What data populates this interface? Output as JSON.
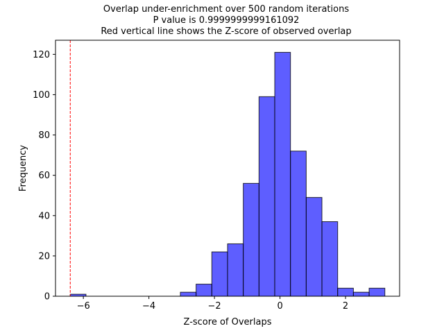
{
  "chart_data": {
    "type": "bar",
    "title_lines": [
      "Overlap under-enrichment over 500 random iterations",
      "P value is 0.9999999999161092",
      "Red vertical line shows the Z-score of observed overlap"
    ],
    "xlabel": "Z-score of Overlaps",
    "ylabel": "Frequency",
    "xlim": [
      -6.85,
      3.65
    ],
    "ylim": [
      0,
      127
    ],
    "xticks": [
      -6,
      -4,
      -2,
      0,
      2
    ],
    "xtick_labels": [
      "−6",
      "−4",
      "−2",
      "0",
      "2"
    ],
    "yticks": [
      0,
      20,
      40,
      60,
      80,
      100,
      120
    ],
    "ytick_labels": [
      "0",
      "20",
      "40",
      "60",
      "80",
      "100",
      "120"
    ],
    "bins": [
      {
        "x0": -6.4,
        "x1": -5.92,
        "count": 1
      },
      {
        "x0": -5.92,
        "x1": -5.44,
        "count": 0
      },
      {
        "x0": -5.44,
        "x1": -4.96,
        "count": 0
      },
      {
        "x0": -4.96,
        "x1": -4.48,
        "count": 0
      },
      {
        "x0": -4.48,
        "x1": -4.0,
        "count": 0
      },
      {
        "x0": -4.0,
        "x1": -3.52,
        "count": 0
      },
      {
        "x0": -3.52,
        "x1": -3.04,
        "count": 0
      },
      {
        "x0": -3.04,
        "x1": -2.56,
        "count": 2
      },
      {
        "x0": -2.56,
        "x1": -2.08,
        "count": 6
      },
      {
        "x0": -2.08,
        "x1": -1.6,
        "count": 22
      },
      {
        "x0": -1.6,
        "x1": -1.12,
        "count": 26
      },
      {
        "x0": -1.12,
        "x1": -0.64,
        "count": 56
      },
      {
        "x0": -0.64,
        "x1": -0.16,
        "count": 99
      },
      {
        "x0": -0.16,
        "x1": 0.32,
        "count": 121
      },
      {
        "x0": 0.32,
        "x1": 0.8,
        "count": 72
      },
      {
        "x0": 0.8,
        "x1": 1.28,
        "count": 49
      },
      {
        "x0": 1.28,
        "x1": 1.76,
        "count": 37
      },
      {
        "x0": 1.76,
        "x1": 2.24,
        "count": 4
      },
      {
        "x0": 2.24,
        "x1": 2.72,
        "count": 2
      },
      {
        "x0": 2.72,
        "x1": 3.2,
        "count": 4
      }
    ],
    "observed_zscore": -6.4,
    "colors": {
      "bar_fill": "#0000ff",
      "bar_fill_opacity": 0.63,
      "bar_edge": "#000000",
      "observed_line": "#ff0000"
    },
    "grid": false,
    "legend": "none"
  }
}
